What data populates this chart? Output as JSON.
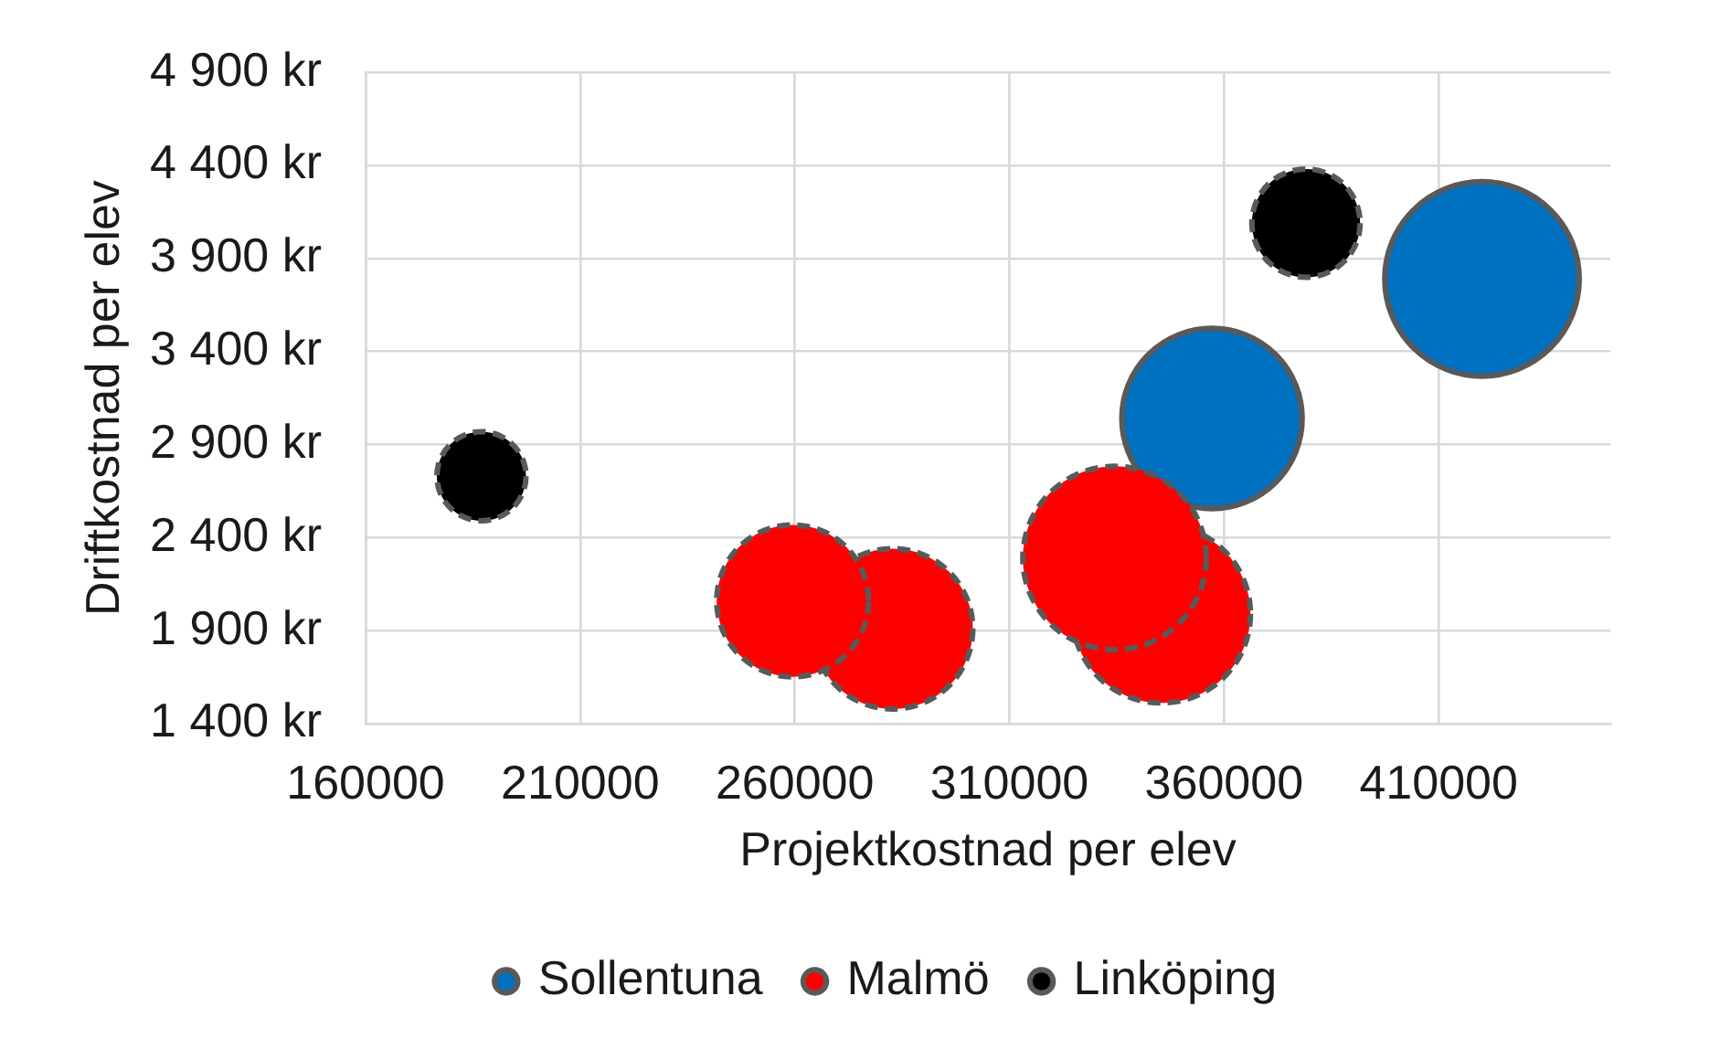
{
  "chart_data": {
    "type": "bubble",
    "xlabel": "Projektkostnad per elev",
    "ylabel": "Driftkostnad per elev",
    "xlim": [
      160000,
      450000
    ],
    "xticks": [
      160000,
      210000,
      260000,
      310000,
      360000,
      410000
    ],
    "ylim": [
      1400,
      4900
    ],
    "yticks": [
      {
        "value": 1400,
        "label": "1 400 kr"
      },
      {
        "value": 1900,
        "label": "1 900 kr"
      },
      {
        "value": 2400,
        "label": "2 400 kr"
      },
      {
        "value": 2900,
        "label": "2 900 kr"
      },
      {
        "value": 3400,
        "label": "3 400 kr"
      },
      {
        "value": 3900,
        "label": "3 900 kr"
      },
      {
        "value": 4400,
        "label": "4 400 kr"
      },
      {
        "value": 4900,
        "label": "4 900 kr"
      }
    ],
    "grid": true,
    "legend": "bottom",
    "marker": "circle",
    "series": [
      {
        "name": "Sollentuna",
        "color": "#0070c0",
        "line_style": "solid",
        "x": [
          357200,
          420100
        ],
        "values": [
          3040,
          3790
        ],
        "sizes": [
          0.86,
          1
        ]
      },
      {
        "name": "Malmö",
        "color": "#ff0000",
        "line_style": "dashed",
        "x": [
          282800,
          259500,
          345400,
          334500
        ],
        "values": [
          1910,
          2060,
          1990,
          2290
        ],
        "sizes": [
          0.68,
          0.61,
          0.84,
          0.89
        ]
      },
      {
        "name": "Linköping",
        "color": "#000000",
        "line_style": "dashed",
        "x": [
          187000,
          379100
        ],
        "values": [
          2730,
          4090
        ],
        "sizes": [
          0.21,
          0.31
        ]
      }
    ]
  }
}
